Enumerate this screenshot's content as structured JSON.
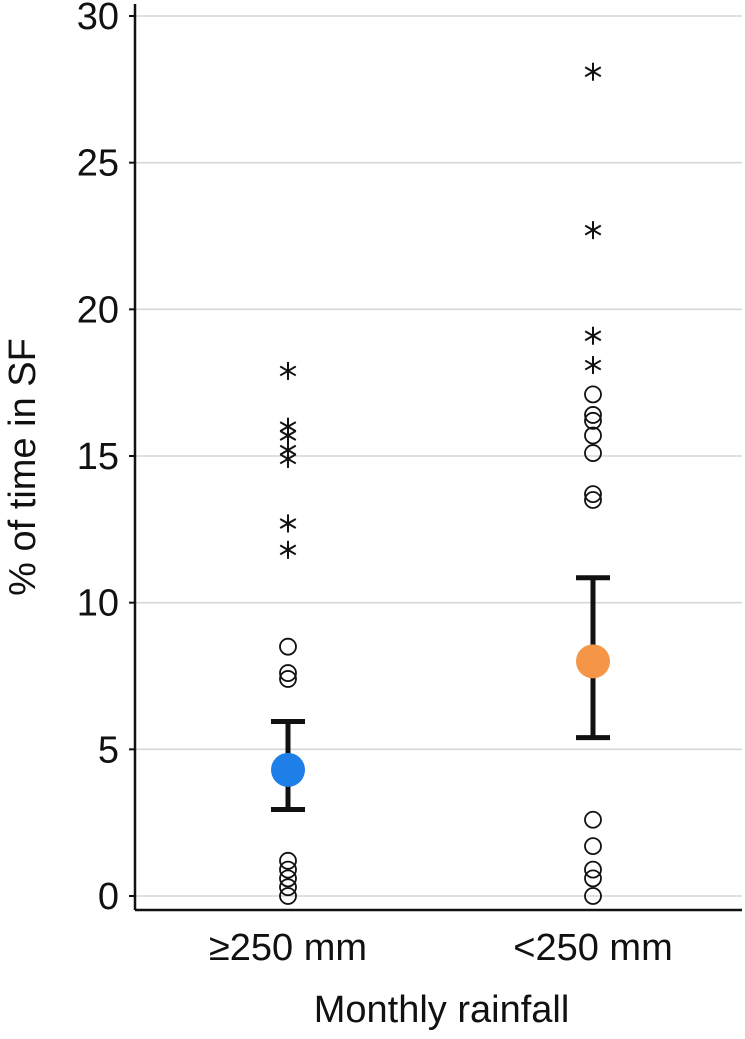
{
  "chart_data": {
    "type": "scatter",
    "title": "",
    "xlabel": "Monthly rainfall",
    "ylabel": "% of time in SF",
    "categories": [
      "≥250 mm",
      "<250 mm"
    ],
    "ylim": [
      0,
      30
    ],
    "yticks": [
      0,
      5,
      10,
      15,
      20,
      25,
      30
    ],
    "grid": true,
    "groups": [
      {
        "category": "≥250 mm",
        "mean": 4.3,
        "error_low": 2.95,
        "error_high": 5.95,
        "mean_color": "#1f7fe8",
        "outliers": [
          0.0,
          0.3,
          0.6,
          0.9,
          1.2,
          7.4,
          7.6,
          8.5
        ],
        "extremes": [
          11.8,
          12.7,
          14.9,
          15.2,
          15.7,
          16.0,
          17.9
        ]
      },
      {
        "category": "<250 mm",
        "mean": 8.0,
        "error_low": 5.4,
        "error_high": 10.85,
        "mean_color": "#f59547",
        "outliers": [
          0.0,
          0.6,
          0.9,
          1.7,
          2.6,
          13.5,
          13.7,
          15.1,
          15.7,
          16.2,
          16.4,
          17.1
        ],
        "extremes": [
          18.1,
          19.1,
          22.7,
          28.1
        ]
      }
    ]
  }
}
